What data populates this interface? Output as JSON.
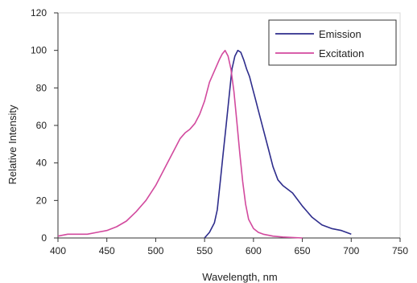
{
  "chart_data": {
    "type": "line",
    "title": "",
    "xlabel": "Wavelength, nm",
    "ylabel": "Relative Intensity",
    "xlim": [
      400,
      750
    ],
    "ylim": [
      0,
      120
    ],
    "x_ticks": [
      "400",
      "450",
      "500",
      "550",
      "600",
      "650",
      "700",
      "750"
    ],
    "y_ticks": [
      "0",
      "20",
      "40",
      "60",
      "80",
      "100",
      "120"
    ],
    "grid": false,
    "legend_position": "top-right",
    "series": [
      {
        "name": "Emission",
        "color": "#2e2d8c",
        "points": [
          [
            550,
            0
          ],
          [
            555,
            3
          ],
          [
            560,
            8
          ],
          [
            563,
            15
          ],
          [
            566,
            30
          ],
          [
            569,
            45
          ],
          [
            572,
            60
          ],
          [
            575,
            75
          ],
          [
            578,
            90
          ],
          [
            581,
            97
          ],
          [
            584,
            100
          ],
          [
            587,
            99
          ],
          [
            590,
            95
          ],
          [
            593,
            90
          ],
          [
            596,
            86
          ],
          [
            599,
            80
          ],
          [
            602,
            74
          ],
          [
            605,
            68
          ],
          [
            610,
            58
          ],
          [
            615,
            48
          ],
          [
            620,
            38
          ],
          [
            625,
            31
          ],
          [
            630,
            28
          ],
          [
            640,
            24
          ],
          [
            650,
            17
          ],
          [
            660,
            11
          ],
          [
            670,
            7
          ],
          [
            680,
            5
          ],
          [
            690,
            4
          ],
          [
            700,
            2
          ]
        ]
      },
      {
        "name": "Excitation",
        "color": "#d24a9e",
        "points": [
          [
            400,
            1
          ],
          [
            410,
            2
          ],
          [
            420,
            2
          ],
          [
            430,
            2
          ],
          [
            440,
            3
          ],
          [
            450,
            4
          ],
          [
            460,
            6
          ],
          [
            470,
            9
          ],
          [
            480,
            14
          ],
          [
            490,
            20
          ],
          [
            500,
            28
          ],
          [
            510,
            38
          ],
          [
            520,
            48
          ],
          [
            525,
            53
          ],
          [
            530,
            56
          ],
          [
            535,
            58
          ],
          [
            540,
            61
          ],
          [
            545,
            66
          ],
          [
            550,
            73
          ],
          [
            555,
            83
          ],
          [
            560,
            89
          ],
          [
            565,
            95
          ],
          [
            568,
            98
          ],
          [
            571,
            100
          ],
          [
            574,
            97
          ],
          [
            577,
            90
          ],
          [
            580,
            78
          ],
          [
            583,
            62
          ],
          [
            586,
            45
          ],
          [
            589,
            30
          ],
          [
            592,
            18
          ],
          [
            595,
            10
          ],
          [
            600,
            5
          ],
          [
            605,
            3
          ],
          [
            610,
            2
          ],
          [
            620,
            1
          ],
          [
            630,
            0.5
          ],
          [
            650,
            0
          ]
        ]
      }
    ]
  }
}
